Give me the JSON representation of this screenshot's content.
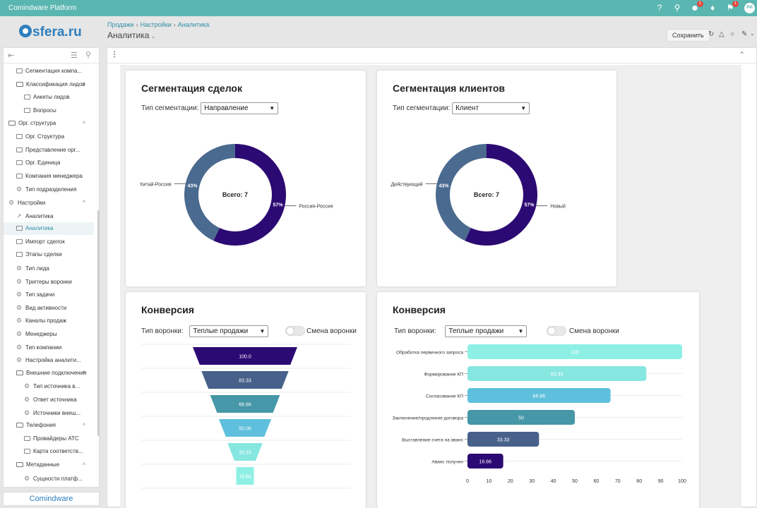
{
  "app": {
    "title": "Comindware Platform",
    "logo_text": "sfera.ru",
    "footer_logo": "Comindware",
    "badge_users": "1",
    "badge_flags": "1",
    "avatar": "РИ"
  },
  "breadcrumb": [
    "Продажи",
    "Настройки",
    "Аналитика"
  ],
  "page_title": "Аналитика",
  "toolbar": {
    "save_label": "Сохранить"
  },
  "sidebar": {
    "items": [
      {
        "label": "Сегментация компа...",
        "icon": "table-icon",
        "indent": 2
      },
      {
        "label": "Классификация лидов",
        "icon": "folder-icon",
        "indent": 2,
        "expanded": true
      },
      {
        "label": "Анкеты лидов",
        "icon": "table-icon",
        "indent": 3
      },
      {
        "label": "Вопросы",
        "icon": "table-icon",
        "indent": 3
      },
      {
        "label": "Орг. структура",
        "icon": "folder-icon",
        "indent": 1,
        "expanded": true
      },
      {
        "label": "Орг. Структура",
        "icon": "list-icon",
        "indent": 2
      },
      {
        "label": "Представление орг...",
        "icon": "table-icon",
        "indent": 2
      },
      {
        "label": "Орг. Единица",
        "icon": "table-icon",
        "indent": 2
      },
      {
        "label": "Компания менеджера",
        "icon": "table-icon",
        "indent": 2
      },
      {
        "label": "Тип подразделения",
        "icon": "gear-icon",
        "indent": 2
      },
      {
        "label": "Настройки",
        "icon": "gear-icon",
        "indent": 1,
        "expanded": true
      },
      {
        "label": "Аналитика",
        "icon": "chart-icon",
        "indent": 2
      },
      {
        "label": "Аналитика",
        "icon": "dashboard-icon",
        "indent": 2,
        "active": true
      },
      {
        "label": "Импорт сделок",
        "icon": "table-icon",
        "indent": 2
      },
      {
        "label": "Этапы сделки",
        "icon": "table-icon",
        "indent": 2
      },
      {
        "label": "Тип лида",
        "icon": "gear-icon",
        "indent": 2
      },
      {
        "label": "Триггеры воронки",
        "icon": "gear-icon",
        "indent": 2
      },
      {
        "label": "Тип задачи",
        "icon": "gear-icon",
        "indent": 2
      },
      {
        "label": "Вид активности",
        "icon": "gear-icon",
        "indent": 2
      },
      {
        "label": "Каналы продаж",
        "icon": "gear-icon",
        "indent": 2
      },
      {
        "label": "Менеджеры",
        "icon": "gear-icon",
        "indent": 2
      },
      {
        "label": "Тип компании",
        "icon": "gear-icon",
        "indent": 2
      },
      {
        "label": "Настройка аналити...",
        "icon": "gear-icon",
        "indent": 2
      },
      {
        "label": "Внешние подключения",
        "icon": "folder-icon",
        "indent": 2,
        "expanded": true
      },
      {
        "label": "Тип источника в...",
        "icon": "gear-icon",
        "indent": 3
      },
      {
        "label": "Ответ источника",
        "icon": "gear-icon",
        "indent": 3
      },
      {
        "label": "Источники внеш...",
        "icon": "gear-icon",
        "indent": 3
      },
      {
        "label": "Телефония",
        "icon": "folder-icon",
        "indent": 2,
        "expanded": true
      },
      {
        "label": "Провайдеры АТС",
        "icon": "table-icon",
        "indent": 3
      },
      {
        "label": "Карта соответств...",
        "icon": "table-icon",
        "indent": 3
      },
      {
        "label": "Метаданные",
        "icon": "folder-icon",
        "indent": 2,
        "expanded": true
      },
      {
        "label": "Сущности платф...",
        "icon": "gear-icon",
        "indent": 3
      }
    ]
  },
  "cards": {
    "deals": {
      "title": "Сегментация сделок",
      "sel_label": "Тип сегментации:",
      "sel_value": "Направление"
    },
    "clients": {
      "title": "Сегментация клиентов",
      "sel_label": "Тип сегментации:",
      "sel_value": "Клиент"
    },
    "conv1": {
      "title": "Конверсия",
      "sel_label": "Тип воронки:",
      "sel_value": "Теплые продажи",
      "toggle_label": "Смена воронки"
    },
    "conv2": {
      "title": "Конверсия",
      "sel_label": "Тип воронки:",
      "sel_value": "Теплые продажи",
      "toggle_label": "Смена воронки"
    }
  },
  "chart_data": [
    {
      "type": "pie",
      "center_label": "Всего: 7",
      "slices": [
        {
          "label": "Россия-Россия",
          "value": 57,
          "color": "#2c0a73"
        },
        {
          "label": "Китай-Россия",
          "value": 43,
          "color": "#4b6a8f"
        }
      ]
    },
    {
      "type": "pie",
      "center_label": "Всего: 7",
      "slices": [
        {
          "label": "Новый",
          "value": 57,
          "color": "#2c0a73"
        },
        {
          "label": "Действующий",
          "value": 43,
          "color": "#4b6a8f"
        }
      ]
    },
    {
      "type": "funnel",
      "values": [
        "100.0",
        "83.33",
        "66.66",
        "50.00",
        "33.33",
        "16.66"
      ],
      "colors": [
        "#2c0a73",
        "#47618a",
        "#4697a8",
        "#5ec0dc",
        "#86e6e0",
        "#8ef0e4"
      ]
    },
    {
      "type": "bar",
      "orientation": "horizontal",
      "categories": [
        "Обработка первичного запроса",
        "Формирование КП",
        "Согласование КП",
        "Заключение/продление договора",
        "Выставление счета на аванс",
        "Аванс получен"
      ],
      "values": [
        100,
        83.33,
        66.66,
        50,
        33.33,
        16.66
      ],
      "labels": [
        "100",
        "83.33",
        "66.66",
        "50",
        "33.33",
        "16.66"
      ],
      "colors": [
        "#8ef0e4",
        "#86e6e0",
        "#5ec0dc",
        "#4697a8",
        "#47618a",
        "#2c0a73"
      ],
      "xlim": [
        0,
        100
      ],
      "ticks": [
        "0",
        "10",
        "20",
        "30",
        "40",
        "50",
        "60",
        "70",
        "80",
        "90",
        "100"
      ]
    }
  ]
}
